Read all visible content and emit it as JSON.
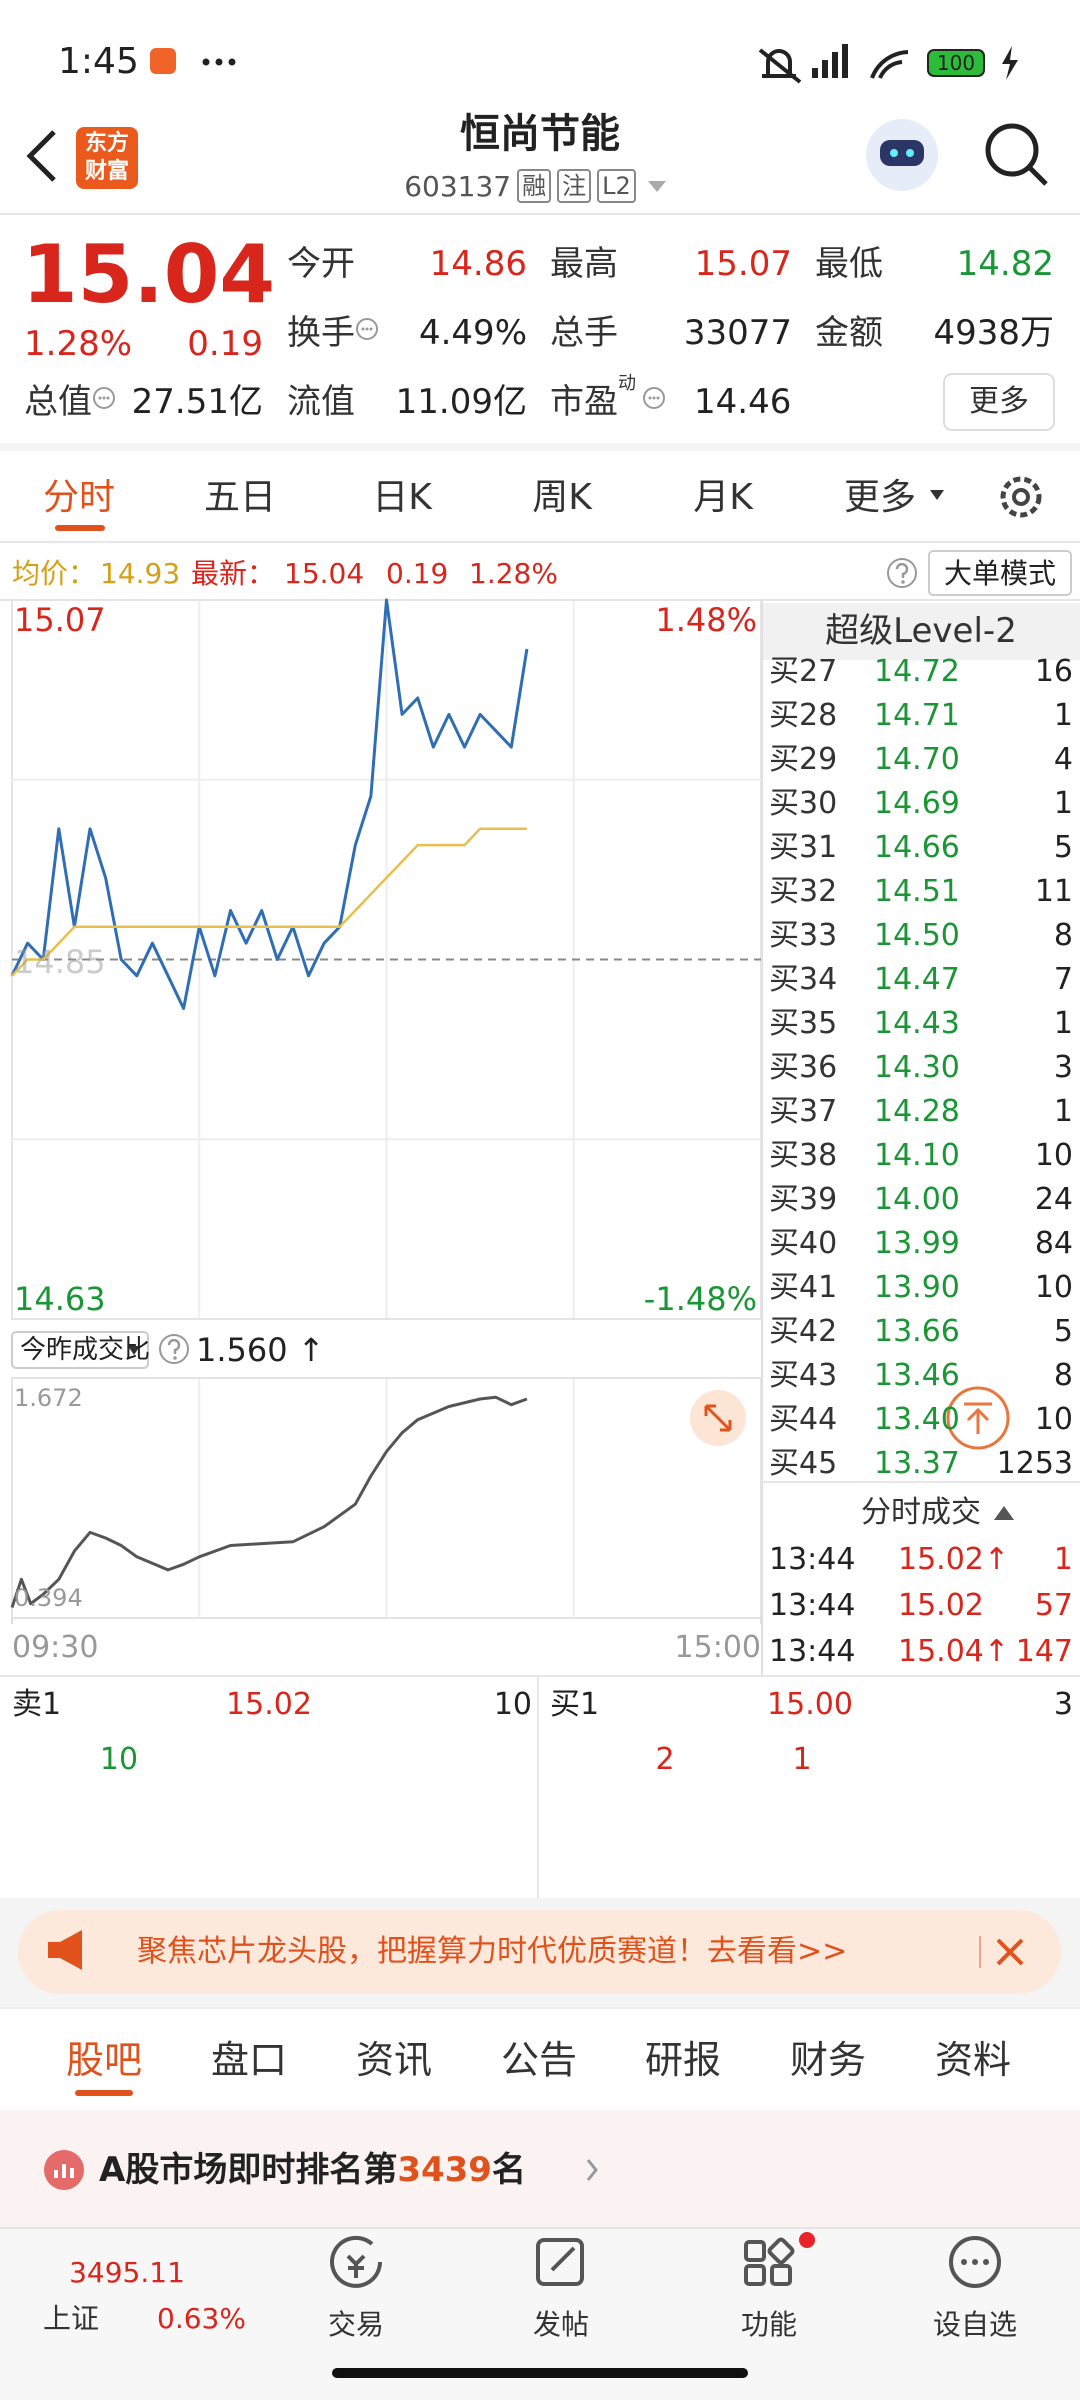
{
  "status_bar": {
    "time": "1:45",
    "battery": "100"
  },
  "header": {
    "logo": [
      "东方",
      "财富"
    ],
    "title": "恒尚节能",
    "code": "603137",
    "tags": [
      "融",
      "注",
      "L2"
    ]
  },
  "quote": {
    "price": "15.04",
    "change_pct": "1.28%",
    "change": "0.19",
    "fields": [
      {
        "label": "今开",
        "value": "14.86"
      },
      {
        "label": "最高",
        "value": "15.07"
      },
      {
        "label": "最低",
        "value": "14.82"
      },
      {
        "label": "换手",
        "value": "4.49%"
      },
      {
        "label": "总手",
        "value": "33077"
      },
      {
        "label": "金额",
        "value": "4938万"
      },
      {
        "label": "总值",
        "value": "27.51亿"
      },
      {
        "label": "流值",
        "value": "11.09亿"
      },
      {
        "label": "市盈",
        "sup": "动",
        "value": "14.46"
      }
    ],
    "more": "更多"
  },
  "period_tabs": [
    "分时",
    "五日",
    "日K",
    "周K",
    "月K",
    "更多"
  ],
  "info_bar": {
    "avg_label": "均价：",
    "avg": "14.93",
    "latest_label": "最新：",
    "latest": "15.04",
    "change": "0.19",
    "change_pct": "1.28%",
    "mode": "大单模式"
  },
  "chart_data": [
    {
      "type": "line",
      "xlim": [
        0,
        240
      ],
      "ylim": [
        14.63,
        15.07
      ],
      "yticks": [
        15.07,
        14.85,
        14.63
      ],
      "y2lim": [
        -1.48,
        1.48
      ],
      "y2ticks": [
        {
          "value": 1.48,
          "label": "1.48%"
        },
        {
          "value": -1.48,
          "label": "-1.48%"
        }
      ],
      "x": [
        0,
        5,
        10,
        15,
        20,
        25,
        30,
        35,
        40,
        45,
        50,
        55,
        60,
        65,
        70,
        75,
        80,
        85,
        90,
        95,
        100,
        105,
        110,
        115,
        120,
        125,
        130,
        135,
        140,
        145,
        150,
        155,
        160,
        165
      ],
      "series": [
        {
          "color": "#2f6db5",
          "values": [
            14.84,
            14.86,
            14.85,
            14.93,
            14.87,
            14.93,
            14.9,
            14.85,
            14.84,
            14.86,
            14.84,
            14.82,
            14.87,
            14.84,
            14.88,
            14.86,
            14.88,
            14.85,
            14.87,
            14.84,
            14.86,
            14.87,
            14.92,
            14.95,
            15.07,
            15.0,
            15.01,
            14.98,
            15.0,
            14.98,
            15.0,
            14.99,
            14.98,
            15.04
          ]
        },
        {
          "color": "#e8bf4c",
          "values": [
            14.84,
            14.85,
            14.85,
            14.86,
            14.87,
            14.87,
            14.87,
            14.87,
            14.87,
            14.87,
            14.87,
            14.87,
            14.87,
            14.87,
            14.87,
            14.87,
            14.87,
            14.87,
            14.87,
            14.87,
            14.87,
            14.87,
            14.88,
            14.89,
            14.9,
            14.91,
            14.92,
            14.92,
            14.92,
            14.92,
            14.93,
            14.93,
            14.93,
            14.93
          ]
        }
      ]
    },
    {
      "type": "line",
      "title": "今昨成交比",
      "annotations": [
        "1.560 ↑"
      ],
      "xlim": [
        0,
        240
      ],
      "xticks": [
        {
          "value": 0,
          "label": "09:30"
        },
        {
          "value": 240,
          "label": "15:00"
        }
      ],
      "ylim": [
        0.394,
        1.672
      ],
      "yticks": [
        1.672,
        0.394
      ],
      "x": [
        0,
        3,
        6,
        10,
        15,
        20,
        25,
        30,
        35,
        40,
        50,
        55,
        60,
        70,
        80,
        90,
        100,
        110,
        115,
        120,
        125,
        130,
        140,
        150,
        155,
        160,
        165
      ],
      "series": [
        {
          "color": "#555555",
          "values": [
            0.45,
            0.6,
            0.47,
            0.52,
            0.6,
            0.75,
            0.85,
            0.82,
            0.78,
            0.72,
            0.65,
            0.68,
            0.72,
            0.78,
            0.79,
            0.8,
            0.88,
            1.0,
            1.15,
            1.28,
            1.38,
            1.45,
            1.52,
            1.56,
            1.57,
            1.53,
            1.56
          ]
        }
      ]
    }
  ],
  "order_book": {
    "title": "超级Level-2",
    "rows": [
      [
        "买27",
        "14.72",
        "16"
      ],
      [
        "买28",
        "14.71",
        "1"
      ],
      [
        "买29",
        "14.70",
        "4"
      ],
      [
        "买30",
        "14.69",
        "1"
      ],
      [
        "买31",
        "14.66",
        "5"
      ],
      [
        "买32",
        "14.51",
        "11"
      ],
      [
        "买33",
        "14.50",
        "8"
      ],
      [
        "买34",
        "14.47",
        "7"
      ],
      [
        "买35",
        "14.43",
        "1"
      ],
      [
        "买36",
        "14.30",
        "3"
      ],
      [
        "买37",
        "14.28",
        "1"
      ],
      [
        "买38",
        "14.10",
        "10"
      ],
      [
        "买39",
        "14.00",
        "24"
      ],
      [
        "买40",
        "13.99",
        "84"
      ],
      [
        "买41",
        "13.90",
        "10"
      ],
      [
        "买42",
        "13.66",
        "5"
      ],
      [
        "买43",
        "13.46",
        "8"
      ],
      [
        "买44",
        "13.40",
        "10"
      ],
      [
        "买45",
        "13.37",
        "1253"
      ]
    ]
  },
  "trades": {
    "title": "分时成交",
    "rows": [
      [
        "13:44",
        "15.02↑",
        "1"
      ],
      [
        "13:44",
        "15.02",
        "57"
      ],
      [
        "13:44",
        "15.04↑",
        "147"
      ]
    ]
  },
  "level1": {
    "sell": [
      "卖1",
      "15.02",
      "10"
    ],
    "buy": [
      "买1",
      "15.00",
      "3"
    ],
    "details": [
      "10",
      "2",
      "1"
    ]
  },
  "banner": {
    "text": "聚焦芯片龙头股，把握算力时代优质赛道！去看看>>"
  },
  "content_tabs": [
    "股吧",
    "盘口",
    "资讯",
    "公告",
    "研报",
    "财务",
    "资料"
  ],
  "ranking": {
    "prefix": "A股市场即时排名第",
    "rank": "3439",
    "suffix": "名"
  },
  "bottom_nav": {
    "index": {
      "value": "3495.11",
      "name": "上证",
      "change": "0.63%"
    },
    "items": [
      "交易",
      "发帖",
      "功能",
      "设自选"
    ]
  }
}
